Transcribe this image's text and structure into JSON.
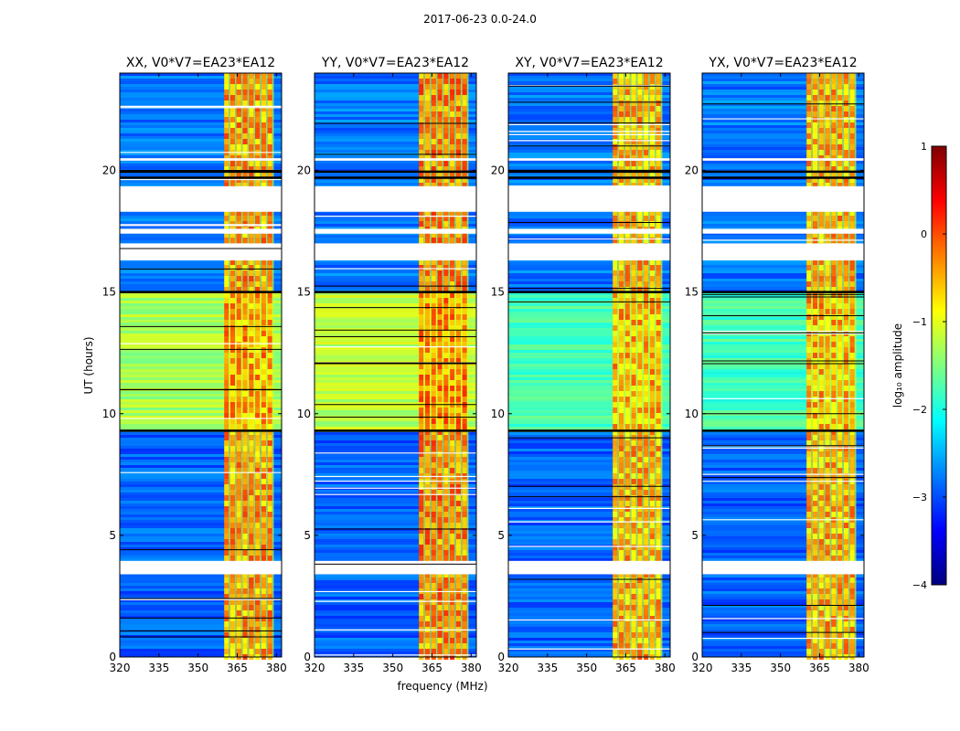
{
  "figure": {
    "suptitle": "2017-06-23 0.0-24.0",
    "xlabel": "frequency (MHz)",
    "ylabel": "UT (hours)"
  },
  "chart_data": [
    {
      "type": "heatmap",
      "title": "XX, V0*V7=EA23*EA12",
      "x_range_mhz": [
        320,
        382
      ],
      "y_range_hours": [
        0,
        24
      ],
      "x_ticks": [
        320,
        335,
        350,
        365,
        380
      ],
      "y_ticks": [
        0,
        5,
        10,
        15,
        20
      ],
      "background_log10_amplitude": [
        {
          "ut_start": 0,
          "ut_end": 9.3,
          "value": -2.9
        },
        {
          "ut_start": 9.3,
          "ut_end": 15,
          "value": -1.3
        },
        {
          "ut_start": 15,
          "ut_end": 24,
          "value": -2.8
        }
      ],
      "rfi_band_mhz": [
        360,
        379
      ],
      "rfi_log10_amplitude": -0.4
    },
    {
      "type": "heatmap",
      "title": "YY, V0*V7=EA23*EA12",
      "x_range_mhz": [
        320,
        382
      ],
      "y_range_hours": [
        0,
        24
      ],
      "x_ticks": [
        320,
        335,
        350,
        365,
        380
      ],
      "y_ticks": [
        0,
        5,
        10,
        15,
        20
      ],
      "background_log10_amplitude": [
        {
          "ut_start": 0,
          "ut_end": 9.3,
          "value": -2.9
        },
        {
          "ut_start": 9.3,
          "ut_end": 15,
          "value": -1.2
        },
        {
          "ut_start": 15,
          "ut_end": 24,
          "value": -2.8
        }
      ],
      "rfi_band_mhz": [
        360,
        379
      ],
      "rfi_log10_amplitude": -0.3
    },
    {
      "type": "heatmap",
      "title": "XY, V0*V7=EA23*EA12",
      "x_range_mhz": [
        320,
        382
      ],
      "y_range_hours": [
        0,
        24
      ],
      "x_ticks": [
        320,
        335,
        350,
        365,
        380
      ],
      "y_ticks": [
        0,
        5,
        10,
        15,
        20
      ],
      "background_log10_amplitude": [
        {
          "ut_start": 0,
          "ut_end": 9.3,
          "value": -2.9
        },
        {
          "ut_start": 9.3,
          "ut_end": 15,
          "value": -1.8
        },
        {
          "ut_start": 15,
          "ut_end": 24,
          "value": -2.8
        }
      ],
      "rfi_band_mhz": [
        360,
        379
      ],
      "rfi_log10_amplitude": -0.5
    },
    {
      "type": "heatmap",
      "title": "YX, V0*V7=EA23*EA12",
      "x_range_mhz": [
        320,
        382
      ],
      "y_range_hours": [
        0,
        24
      ],
      "x_ticks": [
        320,
        335,
        350,
        365,
        380
      ],
      "y_ticks": [
        0,
        5,
        10,
        15,
        20
      ],
      "background_log10_amplitude": [
        {
          "ut_start": 0,
          "ut_end": 9.3,
          "value": -2.9
        },
        {
          "ut_start": 9.3,
          "ut_end": 15,
          "value": -1.8
        },
        {
          "ut_start": 15,
          "ut_end": 24,
          "value": -2.8
        }
      ],
      "rfi_band_mhz": [
        360,
        379
      ],
      "rfi_log10_amplitude": -0.5
    }
  ],
  "gaps_hours": [
    [
      3.4,
      3.95
    ],
    [
      16.3,
      17.0
    ],
    [
      17.4,
      17.6
    ],
    [
      18.3,
      19.35
    ],
    [
      20.4,
      20.5
    ]
  ],
  "thick_black_lines_hours": [
    9.3,
    15.0,
    19.7,
    19.95
  ],
  "colorbar": {
    "label": "log₁₀ amplitude",
    "range": [
      -4,
      1
    ],
    "ticks": [
      1,
      0,
      -1,
      -2,
      -3,
      -4
    ],
    "tick_labels": [
      "1",
      "0",
      "−1",
      "−2",
      "−3",
      "−4"
    ],
    "colormap": [
      "#00007f",
      "#0000ff",
      "#007fff",
      "#00ffff",
      "#7fff7f",
      "#ffff00",
      "#ff7f00",
      "#ff0000",
      "#7f0000"
    ]
  }
}
